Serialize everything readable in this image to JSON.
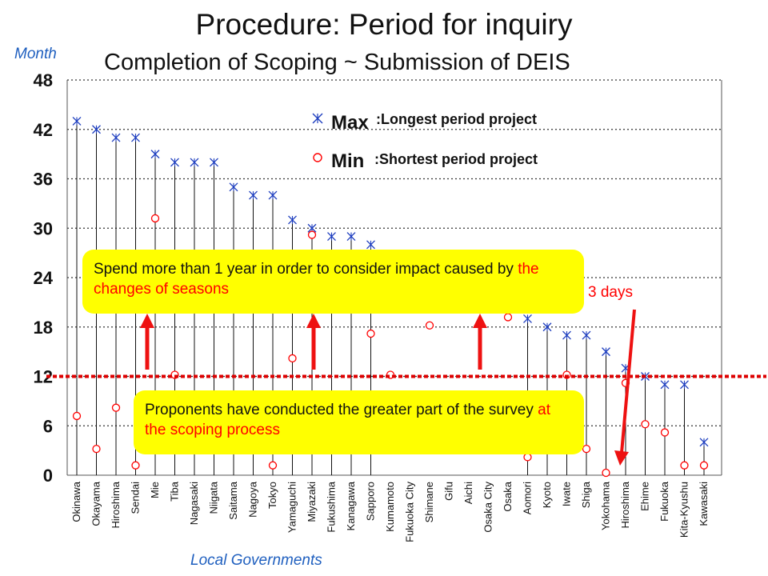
{
  "title": "Procedure: Period for inquiry",
  "subtitle": "Completion of Scoping ~ Submission of DEIS",
  "legend": {
    "max_symbol": "Max",
    "max_label": ":Longest period project",
    "min_symbol": "Min",
    "min_label": ":Shortest period project"
  },
  "callouts": {
    "top": {
      "text": "Spend more than 1 year in order to consider  impact caused by ",
      "highlight": "the changes of seasons"
    },
    "bottom": {
      "text": "Proponents have conducted the greater part of the survey ",
      "highlight": "at the scoping process"
    }
  },
  "annotation_days": "3 days",
  "colors": {
    "max_marker": "#1f3fbf",
    "min_marker": "#ff0000",
    "reference_line": "#dd0000",
    "callout": "#ffff00",
    "axis_label": "#1f5fbf"
  },
  "chart_data": {
    "type": "scatter",
    "title": "",
    "xlabel": "Local Governments",
    "ylabel": "Month",
    "ylim": [
      0,
      48
    ],
    "yticks": [
      0,
      6,
      12,
      18,
      24,
      30,
      36,
      42,
      48
    ],
    "grid": "horizontal dotted",
    "reference_line": 12,
    "categories": [
      "Okinawa",
      "Okayama",
      "Hiroshima",
      "Sendai",
      "Mie",
      "Tiba",
      "Nagasaki",
      "Niigata",
      "Saitama",
      "Nagoya",
      "Tokyo",
      "Yamaguchi",
      "Miyazaki",
      "Fukushima",
      "Kanagawa",
      "Sapporo",
      "Kumamoto",
      "Fukuoka City",
      "Shimane",
      "Gifu",
      "Aichi",
      "Osaka City",
      "Osaka",
      "Aomori",
      "Kyoto",
      "Iwate",
      "Shiga",
      "Yokohama",
      "Hiroshima",
      "Ehime",
      "Fukuoka",
      "Kita-Kyushu",
      "Kawasaki"
    ],
    "series": [
      {
        "name": "Max",
        "values": [
          43,
          42,
          41,
          41,
          39,
          38,
          38,
          38,
          35,
          34,
          34,
          31,
          30,
          29,
          29,
          28,
          null,
          null,
          null,
          null,
          null,
          null,
          null,
          19,
          18,
          17,
          17,
          15,
          13,
          12,
          11,
          11,
          4
        ]
      },
      {
        "name": "Min",
        "values": [
          7,
          3,
          8,
          1,
          31,
          12,
          null,
          null,
          null,
          null,
          1,
          14,
          29,
          null,
          null,
          17,
          12,
          null,
          18,
          null,
          null,
          null,
          19,
          2,
          null,
          12,
          3,
          0.1,
          11,
          6,
          5,
          1,
          1
        ]
      }
    ]
  }
}
